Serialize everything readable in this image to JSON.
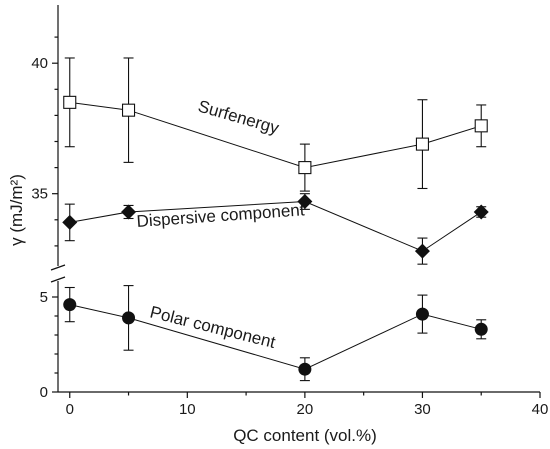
{
  "chart_data": {
    "type": "scatter",
    "xlabel": "QC content (vol.%)",
    "ylabel": "γ (mJ/m²)",
    "xlim": [
      -1,
      40
    ],
    "xticks": [
      "0",
      "10",
      "20",
      "30",
      "40"
    ],
    "yticks_upper": [
      "35",
      "40"
    ],
    "yticks_lower": [
      "0",
      "5"
    ],
    "broken_y_axis": true,
    "grid": false,
    "legend": "none",
    "series": [
      {
        "name": "Surfenergy",
        "marker": "open-square",
        "x": [
          0,
          5,
          20,
          30,
          35
        ],
        "y": [
          38.5,
          38.2,
          36.0,
          36.9,
          37.6
        ],
        "err": [
          1.7,
          2.0,
          0.9,
          1.7,
          0.8
        ]
      },
      {
        "name": "Dispersive component",
        "marker": "filled-diamond",
        "x": [
          0,
          5,
          20,
          30,
          35
        ],
        "y": [
          33.9,
          34.3,
          34.7,
          32.8,
          34.3
        ],
        "err": [
          0.7,
          0.25,
          0.3,
          0.5,
          0.2
        ]
      },
      {
        "name": "Polar component",
        "marker": "filled-circle",
        "x": [
          0,
          5,
          20,
          30,
          35
        ],
        "y": [
          4.6,
          3.9,
          1.2,
          4.1,
          3.3
        ],
        "err": [
          0.9,
          1.7,
          0.6,
          1.0,
          0.5
        ]
      }
    ]
  }
}
